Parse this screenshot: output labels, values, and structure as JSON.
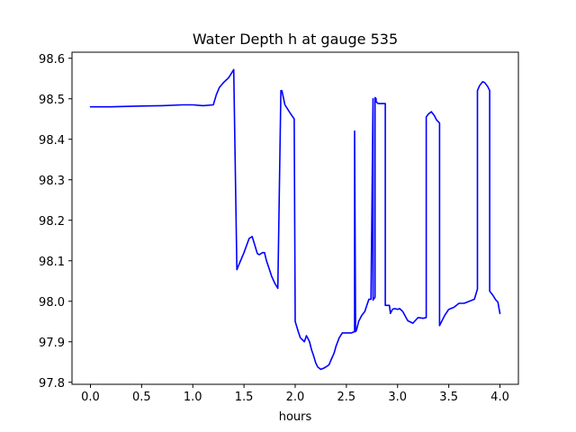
{
  "chart_data": {
    "type": "line",
    "title": "Water Depth h at gauge 535",
    "xlabel": "hours",
    "ylabel": "",
    "xlim": [
      -0.18,
      4.18
    ],
    "ylim": [
      97.795,
      98.615
    ],
    "xticks": [
      0.0,
      0.5,
      1.0,
      1.5,
      2.0,
      2.5,
      3.0,
      3.5,
      4.0
    ],
    "xtick_labels": [
      "0.0",
      "0.5",
      "1.0",
      "1.5",
      "2.0",
      "2.5",
      "3.0",
      "3.5",
      "4.0"
    ],
    "yticks": [
      97.8,
      97.9,
      98.0,
      98.1,
      98.2,
      98.3,
      98.4,
      98.5,
      98.6
    ],
    "ytick_labels": [
      "97.8",
      "97.9",
      "98.0",
      "98.1",
      "98.2",
      "98.3",
      "98.4",
      "98.5",
      "98.6"
    ],
    "grid": false,
    "legend": "none",
    "series": [
      {
        "color": "#0000ff",
        "x": [
          0.0,
          0.2,
          0.5,
          0.7,
          0.9,
          1.0,
          1.1,
          1.2,
          1.23,
          1.26,
          1.3,
          1.35,
          1.4,
          1.43,
          1.43,
          1.45,
          1.5,
          1.55,
          1.58,
          1.61,
          1.63,
          1.65,
          1.68,
          1.7,
          1.72,
          1.74,
          1.77,
          1.8,
          1.83,
          1.86,
          1.87,
          1.87,
          1.9,
          1.95,
          1.99,
          2.0,
          2.03,
          2.05,
          2.07,
          2.09,
          2.11,
          2.12,
          2.14,
          2.16,
          2.18,
          2.2,
          2.22,
          2.25,
          2.28,
          2.3,
          2.33,
          2.35,
          2.38,
          2.4,
          2.43,
          2.46,
          2.5,
          2.55,
          2.58,
          2.58,
          2.59,
          2.59,
          2.6,
          2.62,
          2.65,
          2.68,
          2.7,
          2.72,
          2.74,
          2.76,
          2.76,
          2.78,
          2.78,
          2.79,
          2.79,
          2.81,
          2.85,
          2.88,
          2.88,
          2.9,
          2.92,
          2.93,
          2.95,
          2.97,
          3.0,
          3.02,
          3.05,
          3.1,
          3.15,
          3.2,
          3.25,
          3.28,
          3.28,
          3.3,
          3.33,
          3.36,
          3.38,
          3.41,
          3.41,
          3.43,
          3.46,
          3.5,
          3.55,
          3.6,
          3.65,
          3.7,
          3.75,
          3.78,
          3.78,
          3.8,
          3.83,
          3.85,
          3.88,
          3.9,
          3.9,
          3.93,
          3.96,
          3.98,
          4.0
        ],
        "y": [
          98.48,
          98.48,
          98.482,
          98.483,
          98.485,
          98.485,
          98.483,
          98.485,
          98.51,
          98.528,
          98.54,
          98.552,
          98.572,
          98.078,
          98.078,
          98.09,
          98.12,
          98.155,
          98.16,
          98.135,
          98.118,
          98.115,
          98.12,
          98.12,
          98.1,
          98.085,
          98.062,
          98.045,
          98.032,
          98.52,
          98.52,
          98.52,
          98.485,
          98.465,
          98.45,
          97.95,
          97.925,
          97.91,
          97.905,
          97.9,
          97.915,
          97.91,
          97.9,
          97.88,
          97.865,
          97.848,
          97.838,
          97.832,
          97.835,
          97.838,
          97.843,
          97.855,
          97.872,
          97.89,
          97.91,
          97.922,
          97.922,
          97.922,
          97.925,
          98.42,
          97.925,
          97.925,
          97.93,
          97.95,
          97.965,
          97.975,
          97.99,
          98.005,
          98.005,
          98.5,
          98.003,
          98.01,
          98.503,
          98.5,
          98.493,
          98.488,
          98.488,
          98.488,
          97.99,
          97.99,
          97.99,
          97.97,
          97.98,
          97.982,
          97.98,
          97.982,
          97.975,
          97.952,
          97.946,
          97.96,
          97.958,
          97.96,
          98.455,
          98.462,
          98.468,
          98.458,
          98.448,
          98.44,
          97.94,
          97.95,
          97.965,
          97.98,
          97.985,
          97.995,
          97.995,
          98.0,
          98.005,
          98.03,
          98.52,
          98.532,
          98.542,
          98.54,
          98.53,
          98.52,
          98.025,
          98.015,
          98.003,
          97.998,
          97.97
        ]
      }
    ]
  }
}
